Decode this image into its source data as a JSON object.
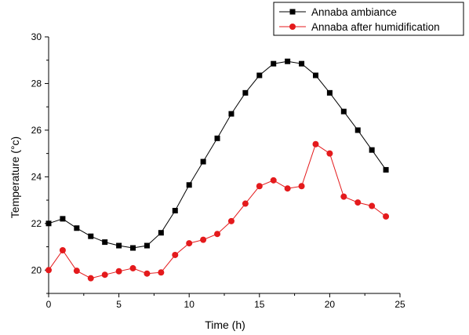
{
  "chart_data": {
    "type": "line",
    "xlabel": "Time (h)",
    "ylabel": "Temperature (°c)",
    "xlim": [
      0,
      25
    ],
    "ylim": [
      19,
      30
    ],
    "x_ticks": [
      0,
      5,
      10,
      15,
      20,
      25
    ],
    "y_ticks": [
      20,
      22,
      24,
      26,
      28,
      30
    ],
    "grid": false,
    "legend_position": "top-right",
    "x": [
      0,
      1,
      2,
      3,
      4,
      5,
      6,
      7,
      8,
      9,
      10,
      11,
      12,
      13,
      14,
      15,
      16,
      17,
      18,
      19,
      20,
      21,
      22,
      23,
      24
    ],
    "series": [
      {
        "name": "Annaba ambiance",
        "color": "#000000",
        "marker": "square",
        "values": [
          22.0,
          22.2,
          21.8,
          21.45,
          21.2,
          21.05,
          20.95,
          21.05,
          21.6,
          22.55,
          23.65,
          24.65,
          25.65,
          26.7,
          27.6,
          28.35,
          28.85,
          28.95,
          28.85,
          28.35,
          27.6,
          26.8,
          26.0,
          25.15,
          24.3
        ]
      },
      {
        "name": "Annaba after humidification",
        "color": "#e41a1c",
        "marker": "circle",
        "values": [
          20.0,
          20.85,
          19.97,
          19.65,
          19.8,
          19.95,
          20.08,
          19.85,
          19.9,
          20.65,
          21.15,
          21.3,
          21.55,
          22.1,
          22.85,
          23.6,
          23.85,
          23.5,
          23.6,
          25.4,
          25.0,
          23.15,
          22.9,
          22.75,
          22.3
        ]
      }
    ]
  }
}
